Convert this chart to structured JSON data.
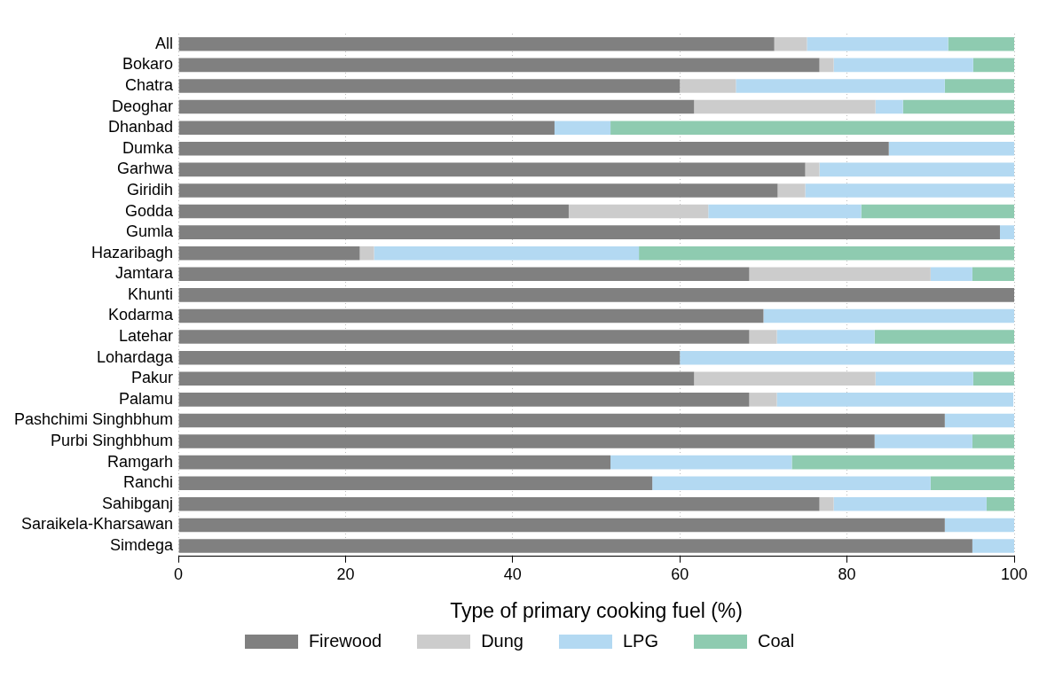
{
  "chart_data": {
    "type": "bar",
    "orientation": "horizontal",
    "stacked": true,
    "xlabel": "Type of primary cooking fuel (%)",
    "categories": [
      "All",
      "Bokaro",
      "Chatra",
      "Deoghar",
      "Dhanbad",
      "Dumka",
      "Garhwa",
      "Giridih",
      "Godda",
      "Gumla",
      "Hazaribagh",
      "Jamtara",
      "Khunti",
      "Kodarma",
      "Latehar",
      "Lohardaga",
      "Pakur",
      "Palamu",
      "Pashchimi Singhbhum",
      "Purbi Singhbhum",
      "Ramgarh",
      "Ranchi",
      "Sahibganj",
      "Saraikela-Kharsawan",
      "Simdega"
    ],
    "series": [
      {
        "name": "Firewood",
        "color": "#808080",
        "values": [
          71.3,
          76.7,
          60,
          61.7,
          45,
          85,
          75,
          71.7,
          46.7,
          98.3,
          21.7,
          68.3,
          100,
          70,
          68.3,
          60,
          61.7,
          68.3,
          91.7,
          83.3,
          51.7,
          56.7,
          76.7,
          91.7,
          95
        ]
      },
      {
        "name": "Dung",
        "color": "#cccccc",
        "values": [
          3.9,
          1.7,
          6.7,
          21.7,
          null,
          null,
          1.7,
          3.3,
          16.7,
          null,
          1.7,
          21.7,
          null,
          null,
          3.3,
          null,
          21.7,
          3.3,
          null,
          null,
          null,
          null,
          1.7,
          null,
          null
        ]
      },
      {
        "name": "LPG",
        "color": "#b3d9f2",
        "values": [
          16.9,
          16.7,
          25,
          3.3,
          6.7,
          15,
          23.3,
          25,
          18.3,
          1.7,
          31.7,
          5,
          null,
          30,
          11.7,
          40,
          11.7,
          28.3,
          8.3,
          11.7,
          21.7,
          33.3,
          18.3,
          8.3,
          5
        ]
      },
      {
        "name": "Coal",
        "color": "#8ecbb0",
        "values": [
          7.9,
          5,
          8.3,
          13.3,
          48.3,
          null,
          null,
          null,
          18.3,
          null,
          45,
          5,
          null,
          null,
          16.7,
          null,
          5,
          null,
          null,
          5,
          26.7,
          10,
          3.3,
          null,
          null
        ]
      }
    ],
    "xlim": [
      0,
      100
    ],
    "xticks": [
      0,
      20,
      40,
      60,
      80,
      100
    ],
    "grid": "x",
    "legend": "bottom"
  }
}
